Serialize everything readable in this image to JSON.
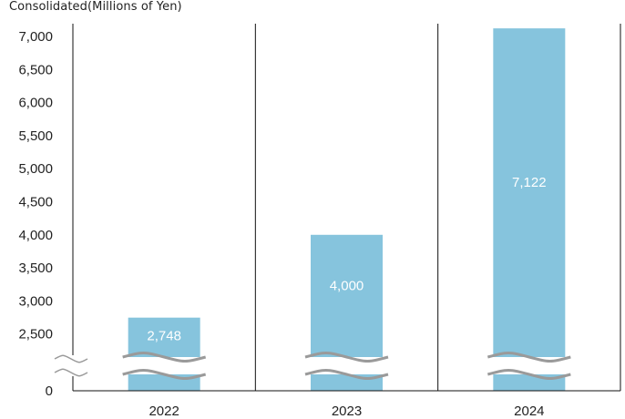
{
  "chart_data": {
    "type": "bar",
    "unit_label": "Consolidated(Millions of Yen)",
    "categories": [
      "2022",
      "2023",
      "2024"
    ],
    "values": [
      2748,
      4000,
      7122
    ],
    "data_labels": [
      "2,748",
      "4,000",
      "7,122"
    ],
    "y_axis_break": true,
    "ylim": [
      0,
      7000
    ],
    "yticks": [
      {
        "value": 7000,
        "label": "7,000"
      },
      {
        "value": 6500,
        "label": "6,500"
      },
      {
        "value": 6000,
        "label": "6,000"
      },
      {
        "value": 5500,
        "label": "5,500"
      },
      {
        "value": 5000,
        "label": "5,000"
      },
      {
        "value": 4500,
        "label": "4,500"
      },
      {
        "value": 4000,
        "label": "4,000"
      },
      {
        "value": 3500,
        "label": "3,500"
      },
      {
        "value": 3000,
        "label": "3,000"
      },
      {
        "value": 2500,
        "label": "2,500"
      },
      {
        "value": 0,
        "label": "0"
      }
    ],
    "bar_color": "#86c4dd",
    "break_color": "#9a9a9a",
    "axis_color": "#111111"
  }
}
